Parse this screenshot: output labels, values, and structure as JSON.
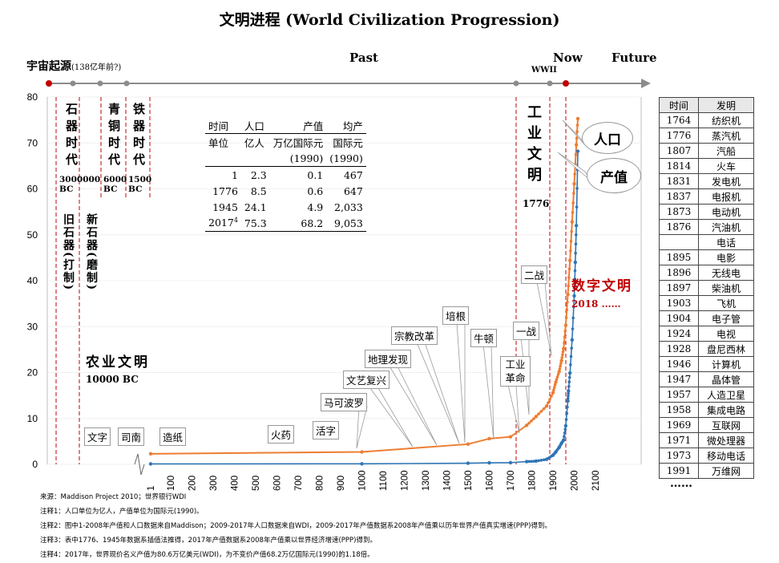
{
  "title": "文明进程 (World Civilization Progression)",
  "timeline": {
    "origin_label": "宇宙起源",
    "origin_sub": "(138亿年前?)",
    "past": "Past",
    "now": "Now",
    "future": "Future",
    "wwii": "WWII"
  },
  "eras": [
    {
      "name": "石器时代",
      "year": "3000000 BC"
    },
    {
      "name": "青铜时代",
      "year": "6000 BC"
    },
    {
      "name": "铁器时代",
      "year": "1500 BC"
    },
    {
      "name": "旧石器(打制)"
    },
    {
      "name": "新石器(磨制)"
    }
  ],
  "agri": {
    "name": "农业文明",
    "year": "10000 BC"
  },
  "industry": {
    "name": "工业文明",
    "year": "1776"
  },
  "digital": {
    "name": "数字文明",
    "year": "2018 ……"
  },
  "series_labels": {
    "pop": "人口",
    "gdp": "产值"
  },
  "events": {
    "wenzi": "文字",
    "sinan": "司南",
    "zaozhi": "造纸",
    "huoyao": "火药",
    "huozi": "活字",
    "marco": "马可波罗",
    "wenyi": "文艺复兴",
    "dili": "地理发现",
    "zongjiao": "宗教改革",
    "peigen": "培根",
    "niudun": "牛顿",
    "gongye": "工业革命",
    "yizhan": "一战",
    "erzhan": "二战"
  },
  "data_table": {
    "headers": [
      "时间",
      "人口",
      "产值",
      "均产"
    ],
    "units": [
      "单位",
      "亿人",
      "万亿国际元",
      "国际元"
    ],
    "units2": [
      "(1990)",
      "(1990)"
    ],
    "rows": [
      [
        "1",
        "2.3",
        "0.1",
        "467"
      ],
      [
        "1776",
        "8.5",
        "0.6",
        "647"
      ],
      [
        "1945",
        "24.1",
        "4.9",
        "2,033"
      ],
      [
        "2017",
        "75.3",
        "68.2",
        "9,053"
      ]
    ],
    "footnote_mark": "4"
  },
  "inventions": {
    "headers": [
      "时间",
      "发明"
    ],
    "rows": [
      [
        "1764",
        "纺织机"
      ],
      [
        "1776",
        "蒸汽机"
      ],
      [
        "1807",
        "汽船"
      ],
      [
        "1814",
        "火车"
      ],
      [
        "1831",
        "发电机"
      ],
      [
        "1837",
        "电报机"
      ],
      [
        "1873",
        "电动机"
      ],
      [
        "1876",
        "汽油机"
      ],
      [
        "",
        "电话"
      ],
      [
        "1895",
        "电影"
      ],
      [
        "1896",
        "无线电"
      ],
      [
        "1897",
        "柴油机"
      ],
      [
        "1903",
        "飞机"
      ],
      [
        "1904",
        "电子管"
      ],
      [
        "1924",
        "电视"
      ],
      [
        "1928",
        "盘尼西林"
      ],
      [
        "1946",
        "计算机"
      ],
      [
        "1947",
        "晶体管"
      ],
      [
        "1957",
        "人造卫星"
      ],
      [
        "1958",
        "集成电路"
      ],
      [
        "1969",
        "互联网"
      ],
      [
        "1971",
        "微处理器"
      ],
      [
        "1973",
        "移动电话"
      ],
      [
        "1991",
        "万维网"
      ]
    ],
    "more": "……"
  },
  "notes": [
    "来源：Maddison Project 2010；世界银行WDI",
    "注释1：人口单位为亿人，产值单位为国际元(1990)。",
    "注释2：图中1-2008年产值和人口数据来自Maddison；2009-2017年人口数据来自WDI，2009-2017年产值数据系2008年产值乘以历年世界产值真实增速(PPP)得到。",
    "注释3：表中1776、1945年数据系插值法推得，2017年产值数据系2008年产值乘以世界经济增速(PPP)得到。",
    "注释4：2017年，世界现价名义产值为80.6万亿美元(WDI)，为不变价产值68.2万亿国际元(1990)的1.18倍。"
  ],
  "chart_data": {
    "type": "line",
    "ylim": [
      0,
      80
    ],
    "yticks": [
      0,
      10,
      20,
      30,
      40,
      50,
      60,
      70,
      80
    ],
    "xticks": [
      "1",
      "100",
      "200",
      "300",
      "400",
      "500",
      "600",
      "700",
      "800",
      "900",
      "1000",
      "1100",
      "1200",
      "1300",
      "1400",
      "1500",
      "1600",
      "1700",
      "1800",
      "1900",
      "2000",
      "2100"
    ],
    "colors": {
      "pop": "#ed7d31",
      "gdp": "#2e75b6",
      "accent": "#c00000"
    },
    "series": [
      {
        "name": "人口",
        "x": [
          1,
          1000,
          1500,
          1600,
          1700,
          1776,
          1820,
          1870,
          1900,
          1913,
          1929,
          1940,
          1950,
          1960,
          1970,
          1980,
          1990,
          2000,
          2010,
          2017
        ],
        "values": [
          2.3,
          2.7,
          4.4,
          5.6,
          6.0,
          8.5,
          10.4,
          12.7,
          15.6,
          17.9,
          20.2,
          22.6,
          25.2,
          30.3,
          37.0,
          44.4,
          52.8,
          61.1,
          69.6,
          75.3
        ]
      },
      {
        "name": "产值",
        "x": [
          1,
          1000,
          1500,
          1600,
          1700,
          1776,
          1820,
          1870,
          1900,
          1913,
          1929,
          1940,
          1950,
          1960,
          1970,
          1973,
          1980,
          1990,
          2000,
          2005,
          2010,
          2017
        ],
        "values": [
          0.1,
          0.12,
          0.25,
          0.33,
          0.37,
          0.6,
          0.7,
          1.1,
          2.0,
          2.7,
          3.7,
          4.6,
          5.3,
          8.4,
          13.8,
          16.0,
          19.9,
          27.1,
          36.7,
          44.0,
          52.0,
          68.2
        ]
      }
    ]
  }
}
